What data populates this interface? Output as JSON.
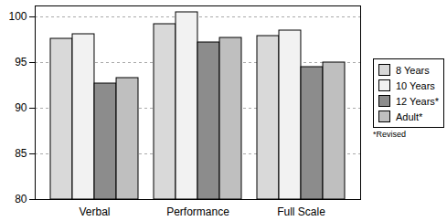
{
  "chart_data": {
    "type": "bar",
    "categories": [
      "Verbal",
      "Performance",
      "Full Scale"
    ],
    "series": [
      {
        "name": "8 Years",
        "color": "#d9d9d9",
        "values": [
          97.6,
          99.2,
          97.9
        ]
      },
      {
        "name": "10 Years",
        "color": "#f2f2f2",
        "values": [
          98.1,
          100.5,
          98.5
        ]
      },
      {
        "name": "12 Years*",
        "color": "#8c8c8c",
        "values": [
          92.7,
          97.2,
          94.5
        ]
      },
      {
        "name": "Adult*",
        "color": "#bfbfbf",
        "values": [
          93.3,
          97.7,
          95.0
        ]
      }
    ],
    "ylim": [
      80,
      101.2
    ],
    "yticks": [
      80,
      85,
      90,
      95,
      100
    ],
    "grid": true,
    "legend": "right",
    "annotations": [
      "*Revised"
    ]
  }
}
